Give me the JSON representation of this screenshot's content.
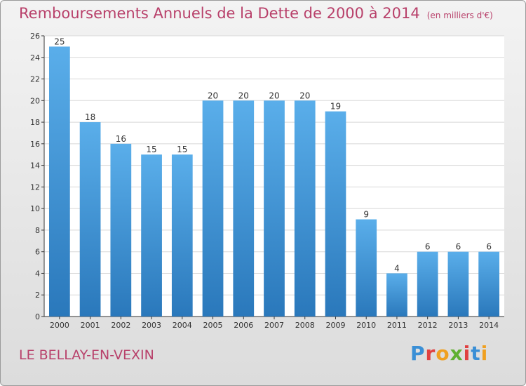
{
  "title": "Remboursements Annuels de la Dette de 2000 à 2014",
  "unit": "(en milliers d'€)",
  "commune": "LE BELLAY-EN-VEXIN",
  "logo": {
    "text": "Proxiti",
    "letters": [
      {
        "ch": "P",
        "color": "#3a8fd6"
      },
      {
        "ch": "r",
        "color": "#e04040"
      },
      {
        "ch": "o",
        "color": "#f0a020"
      },
      {
        "ch": "x",
        "color": "#60b030"
      },
      {
        "ch": "i",
        "color": "#e04040"
      },
      {
        "ch": "t",
        "color": "#3a8fd6"
      },
      {
        "ch": "i",
        "color": "#f0a020"
      }
    ]
  },
  "colors": {
    "bar_top": "#5aaeea",
    "bar_bottom": "#2a78bb",
    "title": "#b8406a",
    "grid": "#d8d8d8"
  },
  "chart_data": {
    "type": "bar",
    "title": "Remboursements Annuels de la Dette de 2000 à 2014",
    "categories": [
      "2000",
      "2001",
      "2002",
      "2003",
      "2004",
      "2005",
      "2006",
      "2007",
      "2008",
      "2009",
      "2010",
      "2011",
      "2012",
      "2013",
      "2014"
    ],
    "values": [
      25,
      18,
      16,
      15,
      15,
      20,
      20,
      20,
      20,
      19,
      9,
      4,
      6,
      6,
      6
    ],
    "ylim": [
      0,
      26
    ],
    "yticks": [
      0,
      2,
      4,
      6,
      8,
      10,
      12,
      14,
      16,
      18,
      20,
      22,
      24,
      26
    ],
    "grid": true,
    "xlabel": "",
    "ylabel": ""
  }
}
